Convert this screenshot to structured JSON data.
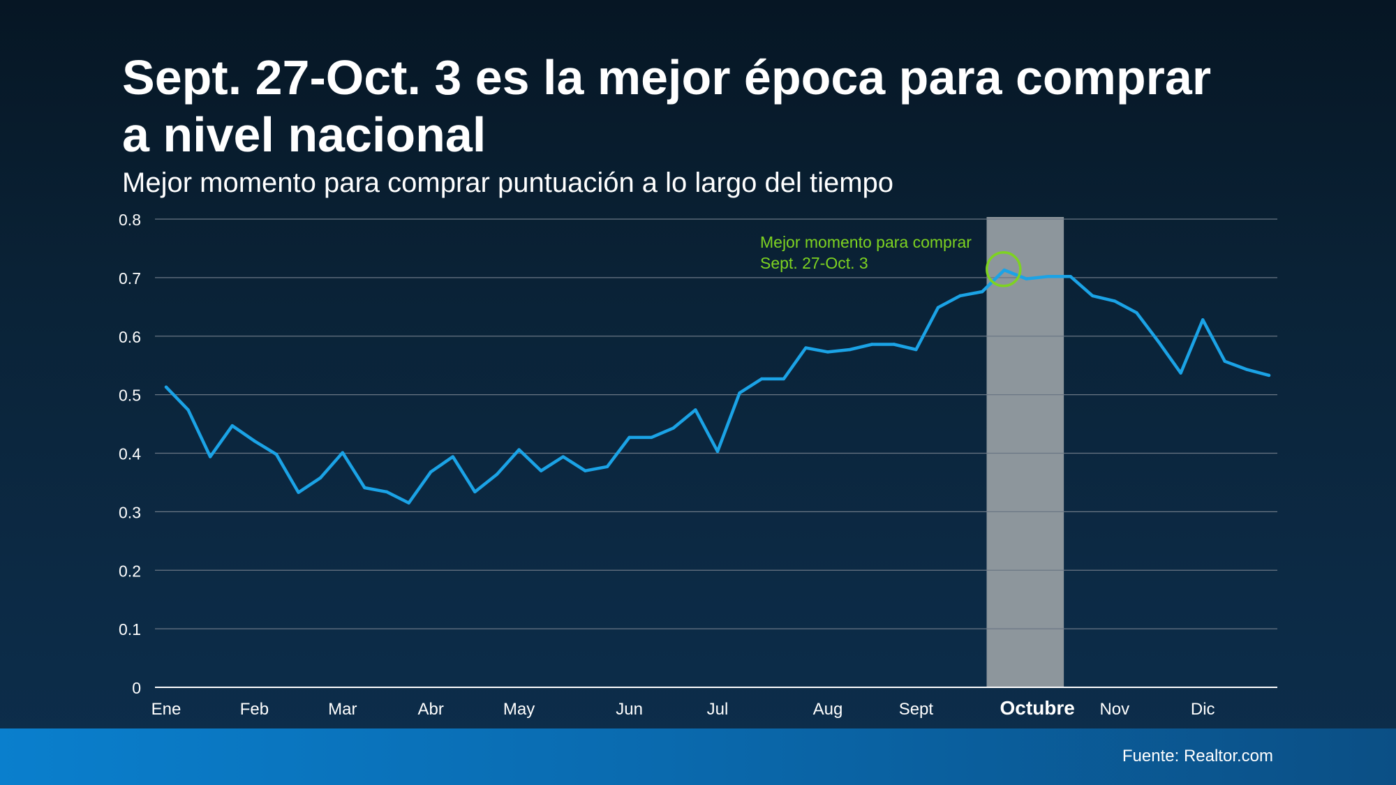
{
  "slide": {
    "title_line1": "Sept. 27-Oct. 3  es la mejor época para comprar",
    "title_line2": "a nivel nacional",
    "subtitle": "Mejor momento para comprar puntuación a lo largo del tiempo",
    "source": "Fuente: Realtor.com"
  },
  "colors": {
    "line": "#1ba3e6",
    "annotation": "#7ed321",
    "highlight": "#8d969c",
    "grid": "#6b7785"
  },
  "chart_data": {
    "type": "line",
    "title": "",
    "xlabel": "",
    "ylabel": "",
    "ylim": [
      0,
      0.8
    ],
    "yticks": [
      "0",
      "0.1",
      "0.2",
      "0.3",
      "0.4",
      "0.5",
      "0.6",
      "0.7",
      "0.8"
    ],
    "grid": true,
    "month_labels": [
      "Ene",
      "Feb",
      "Mar",
      "Abr",
      "May",
      "Jun",
      "Jul",
      "Aug",
      "Sept",
      "Octubre",
      "Nov",
      "Dic"
    ],
    "month_label_week": [
      1,
      5,
      9,
      13,
      17,
      22,
      26,
      31,
      35,
      40.5,
      44,
      48
    ],
    "highlighted_month": "Octubre",
    "highlight_weeks": [
      38.2,
      41.7
    ],
    "series": [
      {
        "x": [
          1,
          2,
          3,
          4,
          5,
          6,
          7,
          8,
          9,
          10,
          11,
          12,
          13,
          14,
          15,
          16,
          17,
          18,
          19,
          20,
          21,
          22,
          23,
          24,
          25,
          26,
          27,
          28,
          29,
          30,
          31,
          32,
          33,
          34,
          35,
          36,
          37,
          38,
          39,
          40,
          41,
          42,
          43,
          44,
          45,
          46,
          47,
          48,
          49,
          50,
          51
        ],
        "values": [
          0.513,
          0.474,
          0.394,
          0.447,
          0.421,
          0.398,
          0.333,
          0.358,
          0.401,
          0.341,
          0.334,
          0.315,
          0.368,
          0.394,
          0.334,
          0.364,
          0.406,
          0.37,
          0.394,
          0.37,
          0.377,
          0.427,
          0.427,
          0.443,
          0.474,
          0.403,
          0.503,
          0.527,
          0.527,
          0.58,
          0.573,
          0.577,
          0.586,
          0.586,
          0.577,
          0.649,
          0.669,
          0.676,
          0.713,
          0.698,
          0.702,
          0.702,
          0.669,
          0.66,
          0.64,
          0.59,
          0.537,
          0.628,
          0.557,
          0.543,
          0.533
        ]
      }
    ],
    "annotation": {
      "lines": [
        "Mejor momento para comprar",
        "Sept. 27-Oct. 3"
      ],
      "week": 39,
      "value": 0.718
    }
  }
}
